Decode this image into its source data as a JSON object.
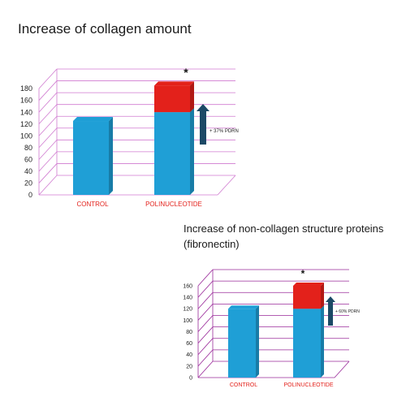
{
  "chart_data": [
    {
      "type": "bar",
      "title": "Increase of collagen amount",
      "categories": [
        "CONTROL",
        "POLINUCLEOTIDE"
      ],
      "series": [
        {
          "values": [
            125,
            140
          ],
          "color": "#1f9fd6"
        },
        {
          "values": [
            0,
            45
          ],
          "color": "#e3211b"
        }
      ],
      "ylim": [
        0,
        180
      ],
      "yticks": [
        0,
        20,
        40,
        60,
        80,
        100,
        120,
        140,
        160,
        180
      ],
      "significance_marker": "*",
      "annotation": "+ 37% PDRN",
      "grid": true,
      "grid_color": "#d07ad0",
      "arrow_color": "#1c4966",
      "category_label_color": "#e3211b"
    },
    {
      "type": "bar",
      "title": "Increase of non-collagen structure proteins (fibronectin)",
      "categories": [
        "CONTROL",
        "POLINUCLEOTIDE"
      ],
      "series": [
        {
          "values": [
            120,
            120
          ],
          "color": "#1f9fd6"
        },
        {
          "values": [
            0,
            40
          ],
          "color": "#e3211b"
        }
      ],
      "ylim": [
        0,
        160
      ],
      "yticks": [
        0,
        20,
        40,
        60,
        80,
        100,
        120,
        140,
        160
      ],
      "significance_marker": "*",
      "annotation": "+ 60% PDRN",
      "grid": true,
      "grid_color": "#9a2a9a",
      "arrow_color": "#1c4966",
      "category_label_color": "#e3211b"
    }
  ]
}
